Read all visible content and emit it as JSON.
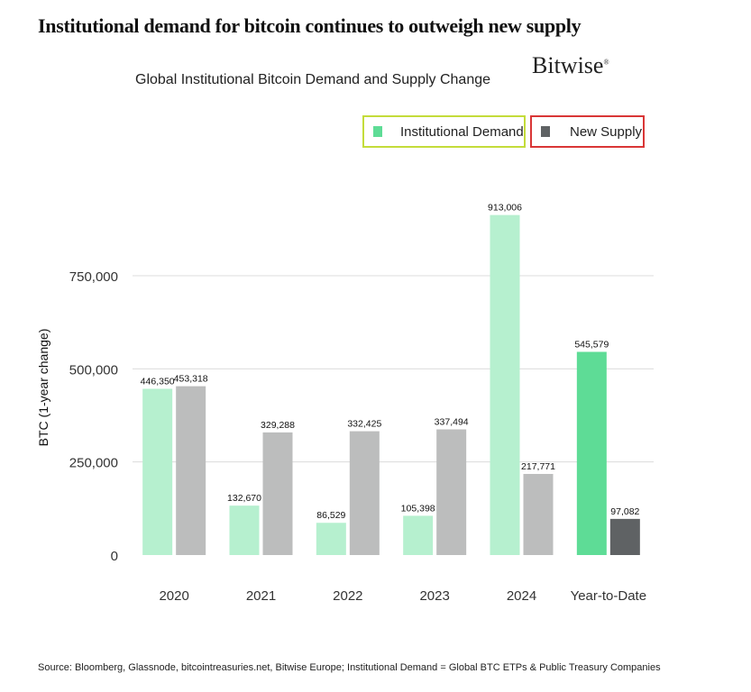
{
  "headline": "Institutional demand for bitcoin continues to outweigh new supply",
  "brand": {
    "name": "Bitwise",
    "mark": "®"
  },
  "source": "Source: Bloomberg, Glassnode, bitcointreasuries.net, Bitwise Europe; Institutional Demand = Global BTC ETPs & Public Treasury Companies",
  "legend": {
    "demand_label": "Institutional Demand",
    "supply_label": "New Supply",
    "demand_border": "#c4dc3a",
    "supply_border": "#d93636"
  },
  "colors": {
    "demand": "#b6f0cf",
    "demand_ytd": "#5edc96",
    "supply": "#bcbdbd",
    "supply_ytd": "#5f6264",
    "demand_swatch": "#5edc96",
    "supply_swatch": "#5f6264",
    "grid": "#dcdcdc"
  },
  "chart_data": {
    "type": "bar",
    "title": "Global Institutional Bitcoin Demand and Supply Change",
    "xlabel": "",
    "ylabel": "BTC (1-year change)",
    "categories": [
      "2020",
      "2021",
      "2022",
      "2023",
      "2024",
      "Year-to-Date"
    ],
    "series": [
      {
        "name": "Institutional Demand",
        "values": [
          446350,
          132670,
          86529,
          105398,
          913006,
          545579
        ],
        "labels": [
          "446,350",
          "132,670",
          "86,529",
          "105,398",
          "913,006",
          "545,579"
        ]
      },
      {
        "name": "New Supply",
        "values": [
          453318,
          329288,
          332425,
          337494,
          217771,
          97082
        ],
        "labels": [
          "453,318",
          "329,288",
          "332,425",
          "337,494",
          "217,771",
          "97,082"
        ]
      }
    ],
    "yticks": [
      0,
      250000,
      500000,
      750000
    ],
    "ytick_labels": [
      "0",
      "250,000",
      "500,000",
      "750,000"
    ],
    "ylim": [
      0,
      1000000
    ],
    "grid": true,
    "legend_position": "top-right"
  }
}
